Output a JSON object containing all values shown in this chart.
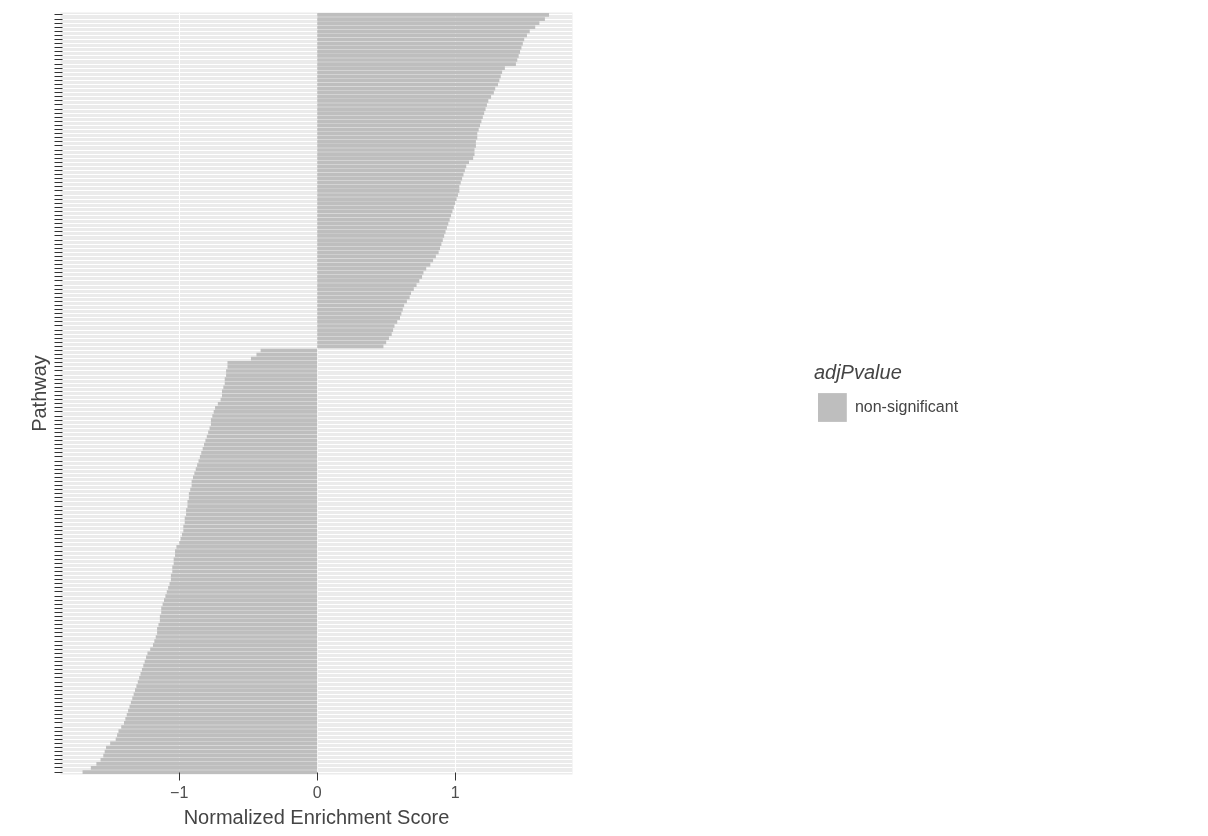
{
  "chart_data": {
    "type": "bar",
    "orientation": "horizontal",
    "xlabel": "Normalized Enrichment Score",
    "ylabel": "Pathway",
    "legend_title": "adjPvalue",
    "categories": [
      null,
      null,
      null,
      null,
      null,
      null,
      null,
      null,
      null,
      null,
      null,
      null,
      null,
      null,
      null,
      null,
      null,
      null,
      null,
      null,
      null,
      null,
      null,
      null,
      null,
      null,
      null,
      null,
      null,
      null,
      null,
      null,
      null,
      null,
      null,
      null,
      null,
      null,
      null,
      null,
      null,
      null,
      null,
      null,
      null,
      null,
      null,
      null,
      null,
      null,
      null,
      null,
      null,
      null,
      null,
      null,
      null,
      null,
      null,
      null,
      null,
      null,
      null,
      null,
      null,
      null,
      null,
      null,
      null,
      null,
      null,
      null,
      null,
      null,
      null,
      null,
      null,
      null,
      null,
      null,
      null,
      null,
      null,
      null,
      null,
      null,
      null,
      null,
      null,
      null,
      null,
      null,
      null,
      null,
      null,
      null,
      null,
      null,
      null,
      null,
      null,
      null,
      null,
      null,
      null,
      null,
      null,
      null,
      null,
      null,
      null,
      null,
      null,
      null,
      null,
      null,
      null,
      null,
      null,
      null,
      null,
      null,
      null,
      null,
      null,
      null,
      null,
      null,
      null,
      null,
      null,
      null,
      null,
      null,
      null,
      null,
      null,
      null,
      null,
      null,
      null,
      null,
      null,
      null,
      null,
      null,
      null,
      null,
      null,
      null,
      null,
      null,
      null,
      null,
      null,
      null,
      null,
      null,
      null,
      null,
      null,
      null,
      null,
      null,
      null,
      null,
      null,
      null,
      null,
      null,
      null,
      null,
      null,
      null,
      null,
      null,
      null,
      null,
      null,
      null,
      null,
      null,
      null,
      null,
      null,
      null
    ],
    "series": [
      {
        "name": "non-significant",
        "color": "#bebebe",
        "values": [
          1.68,
          1.65,
          1.61,
          1.58,
          1.54,
          1.52,
          1.5,
          1.49,
          1.48,
          1.47,
          1.46,
          1.45,
          1.44,
          1.36,
          1.34,
          1.33,
          1.32,
          1.31,
          1.29,
          1.28,
          1.26,
          1.24,
          1.23,
          1.22,
          1.21,
          1.2,
          1.19,
          1.18,
          1.17,
          1.16,
          1.16,
          1.15,
          1.15,
          1.14,
          1.14,
          1.13,
          1.1,
          1.08,
          1.07,
          1.06,
          1.05,
          1.04,
          1.03,
          1.03,
          1.02,
          1.01,
          1.0,
          0.99,
          0.98,
          0.97,
          0.96,
          0.95,
          0.94,
          0.93,
          0.92,
          0.91,
          0.9,
          0.89,
          0.88,
          0.86,
          0.84,
          0.82,
          0.79,
          0.77,
          0.76,
          0.74,
          0.72,
          0.7,
          0.68,
          0.67,
          0.65,
          0.63,
          0.62,
          0.61,
          0.6,
          0.58,
          0.56,
          0.55,
          0.54,
          0.52,
          0.5,
          0.48,
          -0.41,
          -0.44,
          -0.48,
          -0.65,
          -0.65,
          -0.66,
          -0.66,
          -0.67,
          -0.67,
          -0.68,
          -0.69,
          -0.69,
          -0.7,
          -0.72,
          -0.74,
          -0.75,
          -0.76,
          -0.77,
          -0.77,
          -0.78,
          -0.79,
          -0.8,
          -0.81,
          -0.82,
          -0.83,
          -0.84,
          -0.85,
          -0.86,
          -0.87,
          -0.88,
          -0.89,
          -0.9,
          -0.91,
          -0.91,
          -0.92,
          -0.93,
          -0.93,
          -0.94,
          -0.94,
          -0.95,
          -0.95,
          -0.96,
          -0.96,
          -0.97,
          -0.97,
          -0.98,
          -0.99,
          -1.0,
          -1.02,
          -1.03,
          -1.03,
          -1.04,
          -1.04,
          -1.05,
          -1.05,
          -1.06,
          -1.06,
          -1.07,
          -1.08,
          -1.09,
          -1.1,
          -1.11,
          -1.12,
          -1.13,
          -1.13,
          -1.14,
          -1.14,
          -1.15,
          -1.16,
          -1.16,
          -1.17,
          -1.18,
          -1.19,
          -1.21,
          -1.23,
          -1.24,
          -1.25,
          -1.26,
          -1.27,
          -1.28,
          -1.29,
          -1.3,
          -1.31,
          -1.32,
          -1.33,
          -1.34,
          -1.35,
          -1.36,
          -1.37,
          -1.38,
          -1.39,
          -1.4,
          -1.42,
          -1.44,
          -1.45,
          -1.46,
          -1.5,
          -1.53,
          -1.54,
          -1.55,
          -1.57,
          -1.6,
          -1.64,
          -1.7
        ]
      }
    ],
    "xlim": [
      -1.86,
      1.85
    ],
    "xticks": [
      -1,
      0,
      1
    ],
    "grid": true,
    "legend": "right"
  }
}
